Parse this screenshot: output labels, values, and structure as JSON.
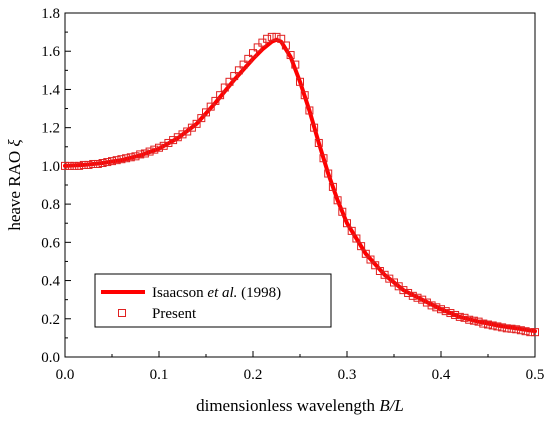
{
  "chart_data": {
    "type": "line",
    "xlabel_parts": [
      "dimensionless wavelength ",
      "B/L"
    ],
    "ylabel_parts": [
      "heave RAO ",
      "ξ"
    ],
    "xlim": [
      0.0,
      0.5
    ],
    "ylim": [
      0.0,
      1.8
    ],
    "x_ticks": [
      "0.0",
      "0.1",
      "0.2",
      "0.3",
      "0.4",
      "0.5"
    ],
    "y_ticks": [
      "0.0",
      "0.2",
      "0.4",
      "0.6",
      "0.8",
      "1.0",
      "1.2",
      "1.4",
      "1.6",
      "1.8"
    ],
    "grid": false,
    "legend_position": "lower-left",
    "series": [
      {
        "name_parts": [
          "Isaacson ",
          "et al.",
          " (1998)"
        ],
        "style": "line",
        "color": "#ff0000",
        "x": [
          0.0,
          0.02,
          0.04,
          0.06,
          0.08,
          0.1,
          0.12,
          0.14,
          0.16,
          0.18,
          0.2,
          0.21,
          0.22,
          0.225,
          0.23,
          0.24,
          0.25,
          0.26,
          0.27,
          0.28,
          0.29,
          0.3,
          0.32,
          0.34,
          0.36,
          0.38,
          0.4,
          0.42,
          0.44,
          0.46,
          0.48,
          0.5
        ],
        "y": [
          1.0,
          1.005,
          1.015,
          1.03,
          1.055,
          1.09,
          1.145,
          1.22,
          1.33,
          1.45,
          1.56,
          1.61,
          1.65,
          1.66,
          1.65,
          1.57,
          1.44,
          1.29,
          1.12,
          0.96,
          0.82,
          0.7,
          0.54,
          0.43,
          0.35,
          0.3,
          0.25,
          0.21,
          0.185,
          0.165,
          0.15,
          0.135
        ]
      },
      {
        "name": "Present",
        "style": "square-marker",
        "color": "#e02020",
        "x": [
          0.0,
          0.005,
          0.01,
          0.015,
          0.02,
          0.025,
          0.03,
          0.035,
          0.04,
          0.045,
          0.05,
          0.055,
          0.06,
          0.065,
          0.07,
          0.075,
          0.08,
          0.085,
          0.09,
          0.095,
          0.1,
          0.105,
          0.11,
          0.115,
          0.12,
          0.125,
          0.13,
          0.135,
          0.14,
          0.145,
          0.15,
          0.155,
          0.16,
          0.165,
          0.17,
          0.175,
          0.18,
          0.185,
          0.19,
          0.195,
          0.2,
          0.205,
          0.21,
          0.215,
          0.22,
          0.225,
          0.23,
          0.235,
          0.24,
          0.245,
          0.25,
          0.255,
          0.26,
          0.265,
          0.27,
          0.275,
          0.28,
          0.285,
          0.29,
          0.295,
          0.3,
          0.305,
          0.31,
          0.315,
          0.32,
          0.325,
          0.33,
          0.335,
          0.34,
          0.345,
          0.35,
          0.355,
          0.36,
          0.365,
          0.37,
          0.375,
          0.38,
          0.385,
          0.39,
          0.395,
          0.4,
          0.405,
          0.41,
          0.415,
          0.42,
          0.425,
          0.43,
          0.435,
          0.44,
          0.445,
          0.45,
          0.455,
          0.46,
          0.465,
          0.47,
          0.475,
          0.48,
          0.485,
          0.49,
          0.495,
          0.5
        ],
        "y": [
          1.0,
          1.0,
          1.0,
          1.0,
          1.005,
          1.005,
          1.01,
          1.01,
          1.015,
          1.02,
          1.025,
          1.03,
          1.035,
          1.04,
          1.045,
          1.05,
          1.06,
          1.065,
          1.075,
          1.085,
          1.095,
          1.105,
          1.12,
          1.135,
          1.15,
          1.165,
          1.18,
          1.2,
          1.22,
          1.25,
          1.28,
          1.31,
          1.34,
          1.37,
          1.41,
          1.44,
          1.47,
          1.5,
          1.53,
          1.56,
          1.59,
          1.62,
          1.645,
          1.665,
          1.675,
          1.675,
          1.665,
          1.63,
          1.58,
          1.53,
          1.44,
          1.37,
          1.29,
          1.2,
          1.12,
          1.04,
          0.96,
          0.89,
          0.82,
          0.76,
          0.7,
          0.66,
          0.62,
          0.58,
          0.54,
          0.51,
          0.48,
          0.45,
          0.43,
          0.41,
          0.39,
          0.37,
          0.35,
          0.335,
          0.32,
          0.31,
          0.3,
          0.285,
          0.27,
          0.26,
          0.25,
          0.24,
          0.23,
          0.22,
          0.21,
          0.205,
          0.195,
          0.19,
          0.185,
          0.175,
          0.17,
          0.165,
          0.16,
          0.155,
          0.15,
          0.148,
          0.145,
          0.14,
          0.135,
          0.13,
          0.13
        ]
      }
    ]
  }
}
